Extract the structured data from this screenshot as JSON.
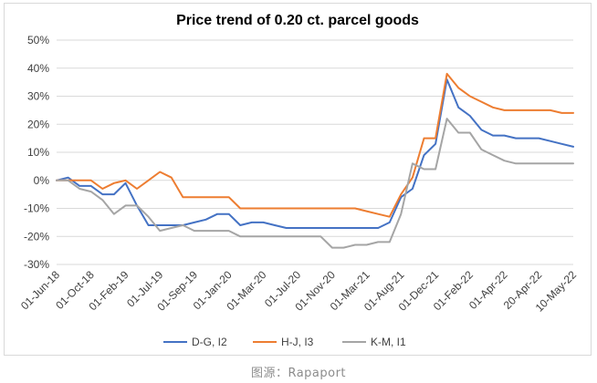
{
  "chart_data": {
    "type": "line",
    "title": "Price trend of 0.20 ct. parcel goods",
    "xlabel": "",
    "ylabel": "",
    "ylim": [
      -0.3,
      0.5
    ],
    "yticks": [
      "-30%",
      "-20%",
      "-10%",
      "0%",
      "10%",
      "20%",
      "30%",
      "40%",
      "50%"
    ],
    "ytick_values": [
      -0.3,
      -0.2,
      -0.1,
      0.0,
      0.1,
      0.2,
      0.3,
      0.4,
      0.5
    ],
    "x_tick_labels": [
      "01-Jun-18",
      "01-Oct-18",
      "01-Feb-19",
      "01-Jul-19",
      "01-Sep-19",
      "01-Jan-20",
      "01-Mar-20",
      "01-Jul-20",
      "01-Nov-20",
      "01-Mar-21",
      "01-Aug-21",
      "01-Dec-21",
      "01-Feb-22",
      "01-Apr-22",
      "20-Apr-22",
      "10-May-22"
    ],
    "x_tick_positions": [
      0,
      3,
      6,
      9,
      12,
      15,
      18,
      21,
      24,
      27,
      30,
      33,
      36,
      39,
      42,
      45
    ],
    "x_count": 46,
    "grid": true,
    "legend_position": "bottom",
    "series": [
      {
        "name": "D-G, I2",
        "color": "#4472c4",
        "values": [
          0.0,
          0.01,
          -0.02,
          -0.02,
          -0.05,
          -0.05,
          -0.01,
          -0.09,
          -0.16,
          -0.16,
          -0.16,
          -0.16,
          -0.15,
          -0.14,
          -0.12,
          -0.12,
          -0.16,
          -0.15,
          -0.15,
          -0.16,
          -0.17,
          -0.17,
          -0.17,
          -0.17,
          -0.17,
          -0.17,
          -0.17,
          -0.17,
          -0.17,
          -0.15,
          -0.06,
          -0.03,
          0.09,
          0.13,
          0.36,
          0.26,
          0.23,
          0.18,
          0.16,
          0.16,
          0.15,
          0.15,
          0.15,
          0.14,
          0.13,
          0.12
        ]
      },
      {
        "name": "H-J, I3",
        "color": "#ed7d31",
        "values": [
          0.0,
          0.0,
          0.0,
          0.0,
          -0.03,
          -0.01,
          0.0,
          -0.03,
          0.0,
          0.03,
          0.01,
          -0.06,
          -0.06,
          -0.06,
          -0.06,
          -0.06,
          -0.1,
          -0.1,
          -0.1,
          -0.1,
          -0.1,
          -0.1,
          -0.1,
          -0.1,
          -0.1,
          -0.1,
          -0.1,
          -0.11,
          -0.12,
          -0.13,
          -0.05,
          0.01,
          0.15,
          0.15,
          0.38,
          0.33,
          0.3,
          0.28,
          0.26,
          0.25,
          0.25,
          0.25,
          0.25,
          0.25,
          0.24,
          0.24
        ]
      },
      {
        "name": "K-M, I1",
        "color": "#a5a5a5",
        "values": [
          0.0,
          0.0,
          -0.03,
          -0.04,
          -0.07,
          -0.12,
          -0.09,
          -0.09,
          -0.13,
          -0.18,
          -0.17,
          -0.16,
          -0.18,
          -0.18,
          -0.18,
          -0.18,
          -0.2,
          -0.2,
          -0.2,
          -0.2,
          -0.2,
          -0.2,
          -0.2,
          -0.2,
          -0.24,
          -0.24,
          -0.23,
          -0.23,
          -0.22,
          -0.22,
          -0.12,
          0.06,
          0.04,
          0.04,
          0.22,
          0.17,
          0.17,
          0.11,
          0.09,
          0.07,
          0.06,
          0.06,
          0.06,
          0.06,
          0.06,
          0.06
        ]
      }
    ]
  },
  "caption": "图源：Rapaport"
}
